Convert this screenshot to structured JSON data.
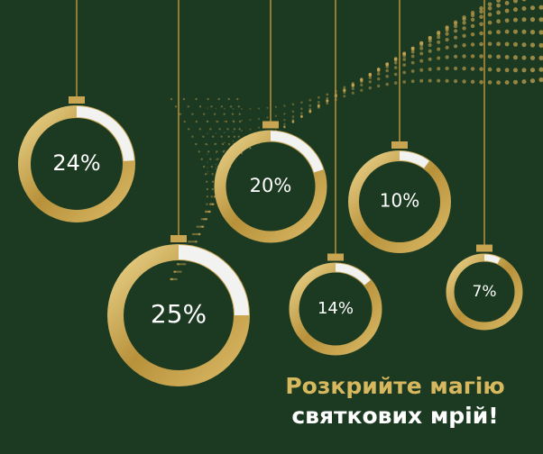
{
  "chart_data": {
    "type": "donut",
    "values": [
      24,
      25,
      20,
      14,
      10,
      7
    ],
    "value_labels": [
      "24%",
      "25%",
      "20%",
      "14%",
      "10%",
      "7%"
    ],
    "title_lines": [
      "Розкрийте магію",
      "святкових мрій!"
    ]
  }
}
